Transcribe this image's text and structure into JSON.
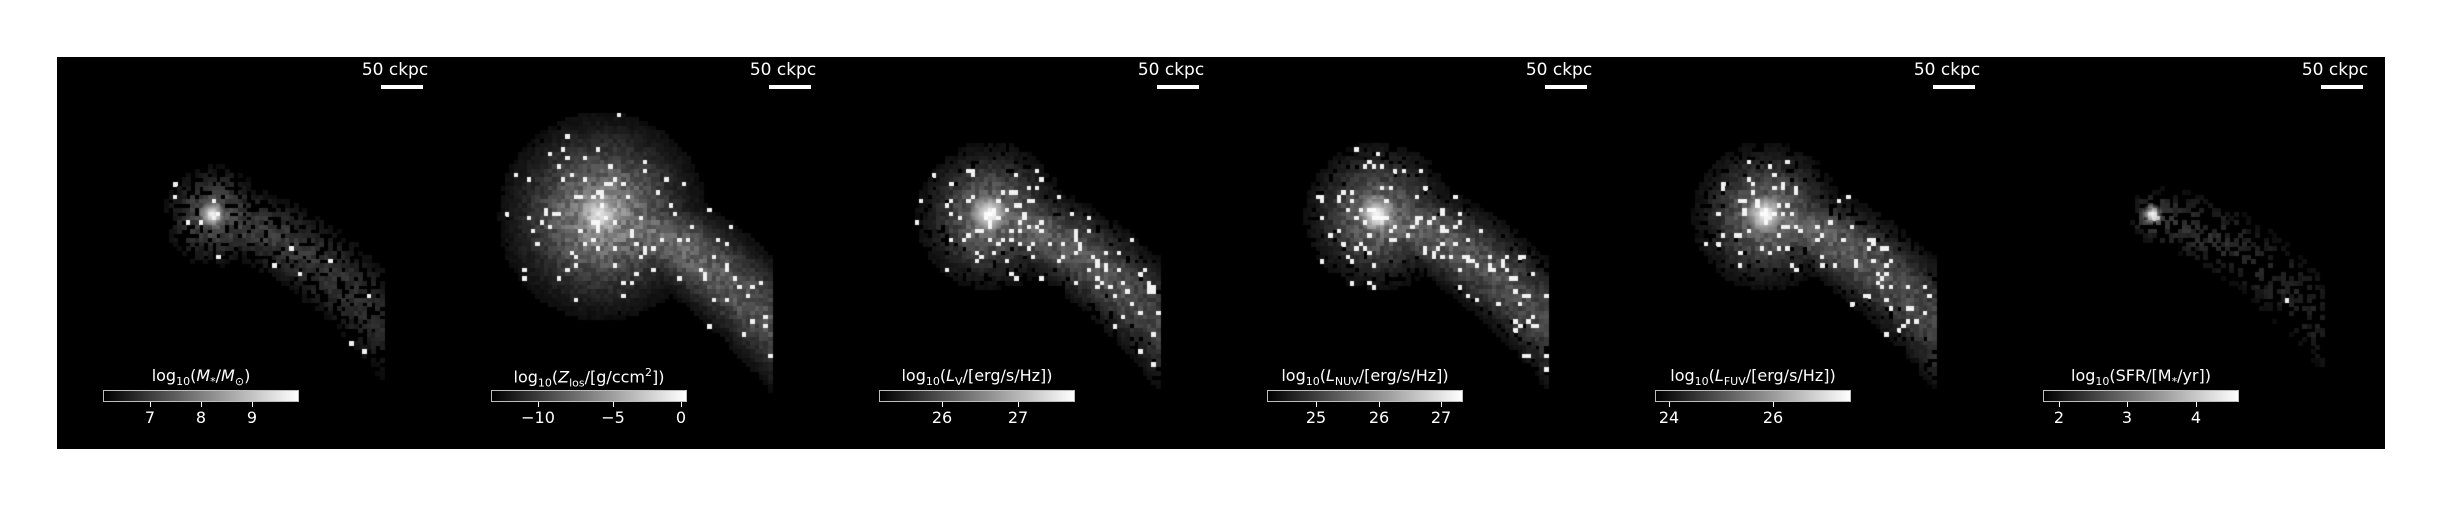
{
  "panels": [
    {
      "scalebar_label": "50 ckpc",
      "colorbar_label_html": "log<sub>10</sub>(<i>M</i><sub>*</sub>/<i>M</i><sub>⊙</sub>)",
      "ticks": [
        {
          "label": "7",
          "frac": 0.24
        },
        {
          "label": "8",
          "frac": 0.5
        },
        {
          "label": "9",
          "frac": 0.76
        }
      ],
      "image_style": "compact"
    },
    {
      "scalebar_label": "50 ckpc",
      "colorbar_label_html": "log<sub>10</sub>(<i>Z</i><sub>los</sub>/[g/ccm<sup>2</sup>])",
      "ticks": [
        {
          "label": "−10",
          "frac": 0.24
        },
        {
          "label": "−5",
          "frac": 0.62
        },
        {
          "label": "0",
          "frac": 0.97
        }
      ],
      "image_style": "diffuse"
    },
    {
      "scalebar_label": "50 ckpc",
      "colorbar_label_html": "log<sub>10</sub>(<i>L</i><sub>V</sub>/[erg/s/Hz])",
      "ticks": [
        {
          "label": "26",
          "frac": 0.32
        },
        {
          "label": "27",
          "frac": 0.71
        }
      ],
      "image_style": "mid"
    },
    {
      "scalebar_label": "50 ckpc",
      "colorbar_label_html": "log<sub>10</sub>(<i>L</i><sub>NUV</sub>/[erg/s/Hz])",
      "ticks": [
        {
          "label": "25",
          "frac": 0.25
        },
        {
          "label": "26",
          "frac": 0.57
        },
        {
          "label": "27",
          "frac": 0.89
        }
      ],
      "image_style": "mid"
    },
    {
      "scalebar_label": "50 ckpc",
      "colorbar_label_html": "log<sub>10</sub>(<i>L</i><sub>FUV</sub>/[erg/s/Hz])",
      "ticks": [
        {
          "label": "24",
          "frac": 0.07
        },
        {
          "label": "26",
          "frac": 0.6
        }
      ],
      "image_style": "mid"
    },
    {
      "scalebar_label": "50 ckpc",
      "colorbar_label_html": "log<sub>10</sub>(SFR/[M<sub>*</sub>/yr])",
      "ticks": [
        {
          "label": "2",
          "frac": 0.08
        },
        {
          "label": "3",
          "frac": 0.43
        },
        {
          "label": "4",
          "frac": 0.78
        }
      ],
      "image_style": "sparse"
    }
  ]
}
